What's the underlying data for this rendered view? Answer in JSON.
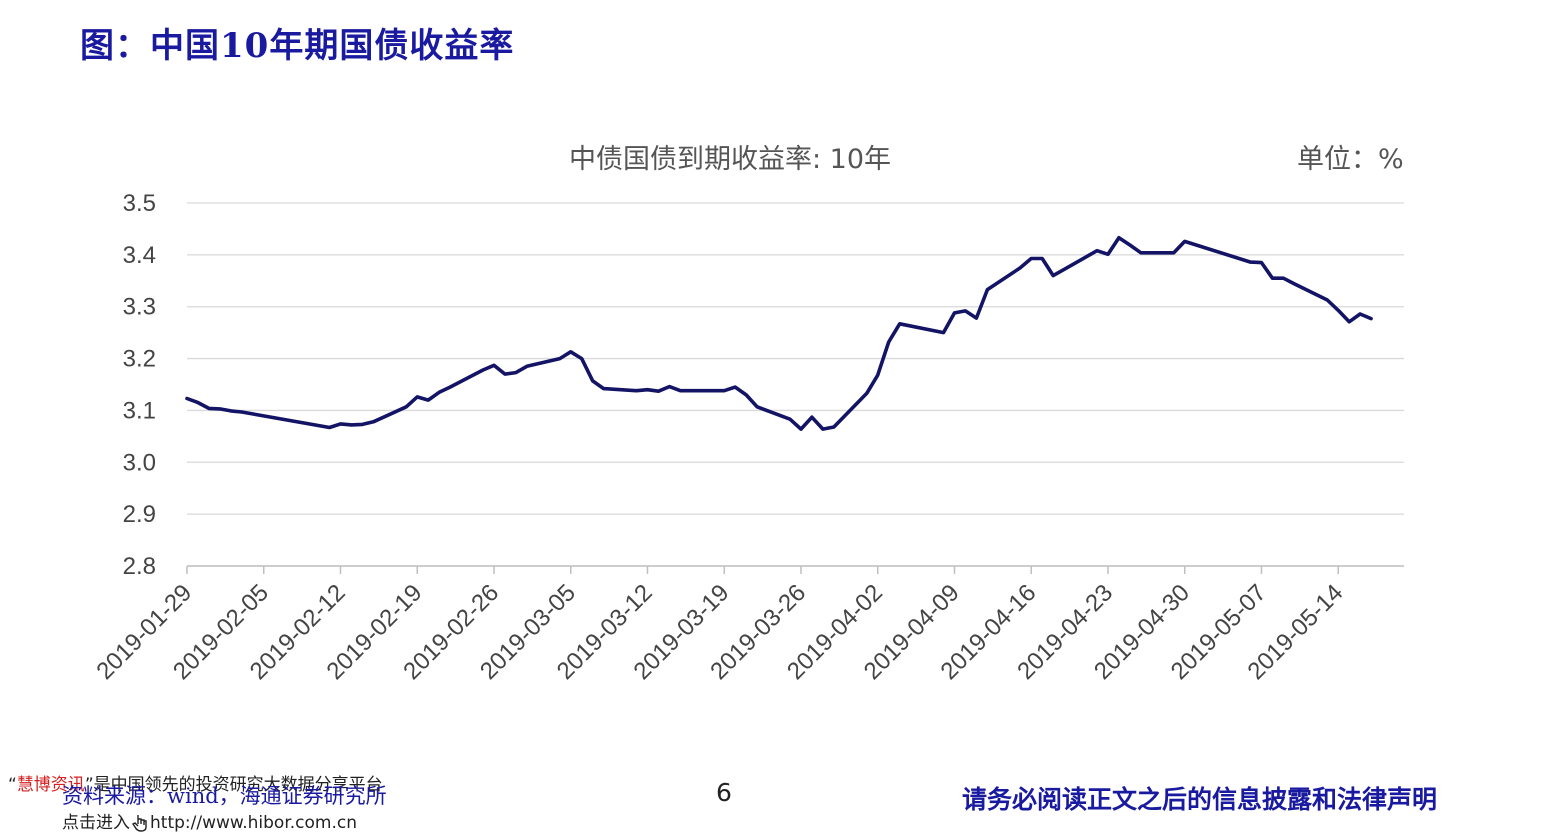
{
  "page_title": "图：中国10年期国债收益率",
  "unit_label": "单位：%",
  "footer": {
    "source": "资料来源：wind，海通证券研究所",
    "page_number": "6",
    "disclaimer": "请务必阅读正文之后的信息披露和法律声明"
  },
  "watermark": {
    "quote_open": "“",
    "brand": "慧博资讯",
    "quote_close": "”",
    "line1_text": "是中国领先的投资研究大数据分享平台",
    "line2_prefix": "点击进入",
    "line2_url": "http://www.hibor.com.cn"
  },
  "colors": {
    "line": "#141466",
    "title_blue": "#1a1aa0",
    "grid": "#d9d9d9"
  },
  "chart_data": {
    "type": "line",
    "title": "中债国债到期收益率: 10年",
    "ylim": [
      2.8,
      3.5
    ],
    "yticks": [
      "3.5",
      "3.4",
      "3.3",
      "3.2",
      "3.1",
      "3.0",
      "2.9",
      "2.8"
    ],
    "xlim": [
      "2019-01-29",
      "2019-05-20"
    ],
    "xticks": [
      "2019-01-29",
      "2019-02-05",
      "2019-02-12",
      "2019-02-19",
      "2019-02-26",
      "2019-03-05",
      "2019-03-12",
      "2019-03-19",
      "2019-03-26",
      "2019-04-02",
      "2019-04-09",
      "2019-04-16",
      "2019-04-23",
      "2019-04-30",
      "2019-05-07",
      "2019-05-14"
    ],
    "grid": true,
    "legend": "none",
    "series": [
      {
        "x": [
          "2019-01-29",
          "2019-01-30",
          "2019-01-31",
          "2019-02-01",
          "2019-02-02",
          "2019-02-03",
          "2019-02-11",
          "2019-02-12",
          "2019-02-13",
          "2019-02-14",
          "2019-02-15",
          "2019-02-18",
          "2019-02-19",
          "2019-02-20",
          "2019-02-21",
          "2019-02-22",
          "2019-02-25",
          "2019-02-26",
          "2019-02-27",
          "2019-02-28",
          "2019-03-01",
          "2019-03-04",
          "2019-03-05",
          "2019-03-06",
          "2019-03-07",
          "2019-03-08",
          "2019-03-11",
          "2019-03-12",
          "2019-03-13",
          "2019-03-14",
          "2019-03-15",
          "2019-03-18",
          "2019-03-19",
          "2019-03-20",
          "2019-03-21",
          "2019-03-22",
          "2019-03-25",
          "2019-03-26",
          "2019-03-27",
          "2019-03-28",
          "2019-03-29",
          "2019-04-01",
          "2019-04-02",
          "2019-04-03",
          "2019-04-04",
          "2019-04-08",
          "2019-04-09",
          "2019-04-10",
          "2019-04-11",
          "2019-04-12",
          "2019-04-15",
          "2019-04-16",
          "2019-04-17",
          "2019-04-18",
          "2019-04-19",
          "2019-04-22",
          "2019-04-23",
          "2019-04-24",
          "2019-04-25",
          "2019-04-26",
          "2019-04-29",
          "2019-04-30",
          "2019-05-06",
          "2019-05-07",
          "2019-05-08",
          "2019-05-09",
          "2019-05-10",
          "2019-05-13",
          "2019-05-14",
          "2019-05-15",
          "2019-05-16",
          "2019-05-17"
        ],
        "values": [
          3.123,
          3.115,
          3.104,
          3.103,
          3.099,
          3.097,
          3.067,
          3.074,
          3.072,
          3.073,
          3.078,
          3.107,
          3.126,
          3.12,
          3.135,
          3.145,
          3.178,
          3.187,
          3.17,
          3.173,
          3.185,
          3.2,
          3.213,
          3.2,
          3.157,
          3.142,
          3.138,
          3.14,
          3.137,
          3.146,
          3.138,
          3.138,
          3.138,
          3.145,
          3.13,
          3.107,
          3.083,
          3.064,
          3.087,
          3.064,
          3.068,
          3.133,
          3.168,
          3.232,
          3.267,
          3.25,
          3.288,
          3.292,
          3.278,
          3.333,
          3.375,
          3.393,
          3.393,
          3.36,
          3.372,
          3.408,
          3.401,
          3.433,
          3.419,
          3.404,
          3.404,
          3.426,
          3.386,
          3.385,
          3.355,
          3.355,
          3.344,
          3.313,
          3.293,
          3.271,
          3.286,
          3.277
        ]
      }
    ]
  }
}
